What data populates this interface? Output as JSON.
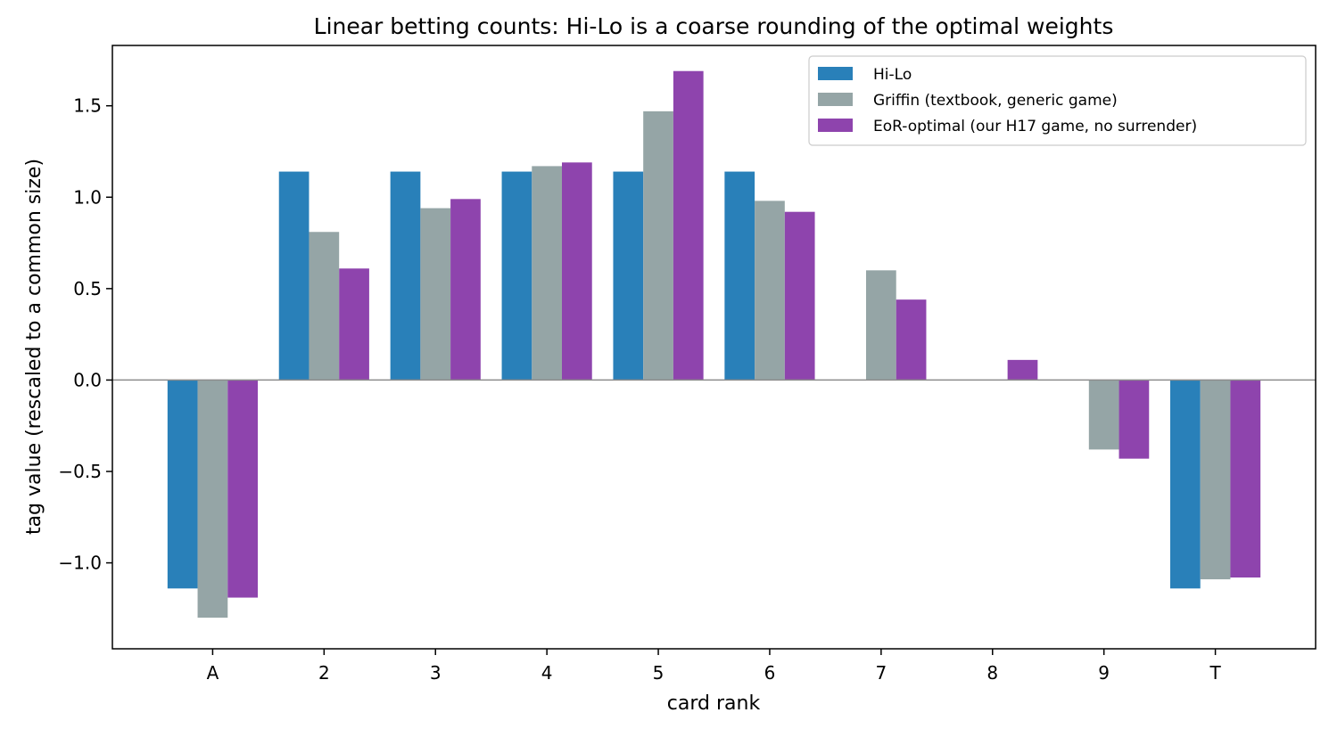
{
  "chart_data": {
    "type": "bar",
    "title": "Linear betting counts: Hi-Lo is a coarse rounding of the optimal weights",
    "xlabel": "card rank",
    "ylabel": "tag value (rescaled to a common size)",
    "categories": [
      "A",
      "2",
      "3",
      "4",
      "5",
      "6",
      "7",
      "8",
      "9",
      "T"
    ],
    "series": [
      {
        "name": "Hi-Lo",
        "color": "#2980b9",
        "values": [
          -1.14,
          1.14,
          1.14,
          1.14,
          1.14,
          1.14,
          0,
          0,
          0,
          -1.14
        ]
      },
      {
        "name": "Griffin (textbook, generic game)",
        "color": "#95a5a6",
        "values": [
          -1.3,
          0.81,
          0.94,
          1.17,
          1.47,
          0.98,
          0.6,
          0,
          -0.38,
          -1.09
        ]
      },
      {
        "name": "EoR-optimal (our H17 game, no surrender)",
        "color": "#8e44ad",
        "values": [
          -1.19,
          0.61,
          0.99,
          1.19,
          1.69,
          0.92,
          0.44,
          0.11,
          -0.43,
          -1.08
        ]
      }
    ],
    "ylim": [
      -1.47,
      1.83
    ],
    "yticks": [
      -1.0,
      -0.5,
      0.0,
      0.5,
      1.0,
      1.5
    ],
    "ytick_labels": [
      "−1.0",
      "−0.5",
      "0.0",
      "0.5",
      "1.0",
      "1.5"
    ],
    "grid": false,
    "zero_line": true,
    "legend_position": "top-right"
  }
}
